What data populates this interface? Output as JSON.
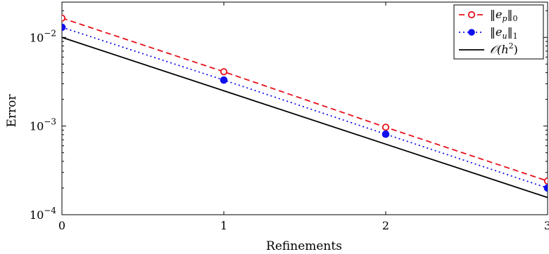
{
  "chart_data": {
    "type": "line",
    "title": "",
    "xlabel": "Refinements",
    "ylabel": "Error",
    "x": [
      0,
      1,
      2,
      3
    ],
    "xlim": [
      0,
      3
    ],
    "ylim": [
      0.0001,
      0.025
    ],
    "yscale": "log",
    "xticks": [
      "0",
      "1",
      "2",
      "3"
    ],
    "yticks": [
      {
        "value": 0.01,
        "base": "10",
        "exp": "−2"
      },
      {
        "value": 0.001,
        "base": "10",
        "exp": "−3"
      },
      {
        "value": 0.0001,
        "base": "10",
        "exp": "−4"
      }
    ],
    "grid": false,
    "legend_position": "top-right",
    "series": [
      {
        "name": "‖e_p‖_0",
        "legend_main": "‖e",
        "legend_sub": "p",
        "legend_tail": "‖",
        "legend_sub2": "0",
        "values": [
          0.0165,
          0.0041,
          0.00097,
          0.00024
        ],
        "color": "#e8101a",
        "dash": "8,5",
        "marker": "open-circle"
      },
      {
        "name": "‖e_u‖_1",
        "legend_main": "‖e",
        "legend_sub": "u",
        "legend_tail": "‖",
        "legend_sub2": "1",
        "values": [
          0.013,
          0.0033,
          0.00081,
          0.0002
        ],
        "color": "#1010ee",
        "dash": "2,4",
        "marker": "filled-circle"
      },
      {
        "name": "𝒪(h²)",
        "legend_main": "𝒪(h",
        "legend_sup": "2",
        "legend_tail": ")",
        "values": [
          0.01,
          0.0025,
          0.000625,
          0.00015625
        ],
        "color": "#000000",
        "dash": "",
        "marker": "none"
      }
    ]
  }
}
